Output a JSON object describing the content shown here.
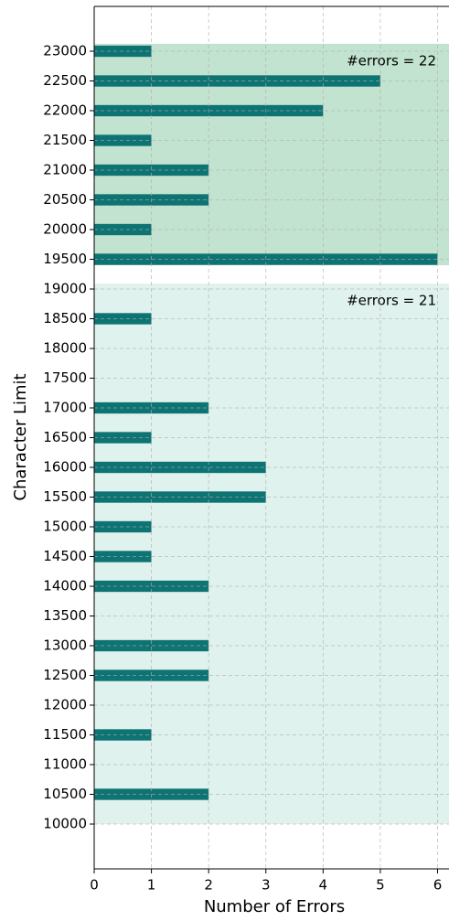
{
  "chart_data": {
    "type": "barh",
    "categories": [
      10000,
      10500,
      11000,
      11500,
      12000,
      12500,
      13000,
      13500,
      14000,
      14500,
      15000,
      15500,
      16000,
      16500,
      17000,
      17500,
      18000,
      18500,
      19000,
      19500,
      20000,
      20500,
      21000,
      21500,
      22000,
      22500,
      23000
    ],
    "values": [
      0,
      2,
      0,
      1,
      0,
      2,
      2,
      0,
      2,
      1,
      1,
      3,
      3,
      1,
      2,
      0,
      0,
      1,
      0,
      6,
      1,
      2,
      2,
      1,
      4,
      5,
      1
    ],
    "color": "#0e7373",
    "xlabel": "Number of Errors",
    "ylabel": "Character Limit",
    "xlim": [
      0,
      6.2
    ],
    "xticks": [
      0,
      1,
      2,
      3,
      4,
      5,
      6
    ],
    "ylim": [
      9246,
      23754
    ],
    "grid": true,
    "regions": [
      {
        "ylim": [
          19400,
          23125
        ],
        "color": "#c2e3cf",
        "label": "#errors = 22"
      },
      {
        "ylim": [
          10000,
          19090
        ],
        "color": "#e0f2ed",
        "label": "#errors = 21"
      }
    ]
  }
}
